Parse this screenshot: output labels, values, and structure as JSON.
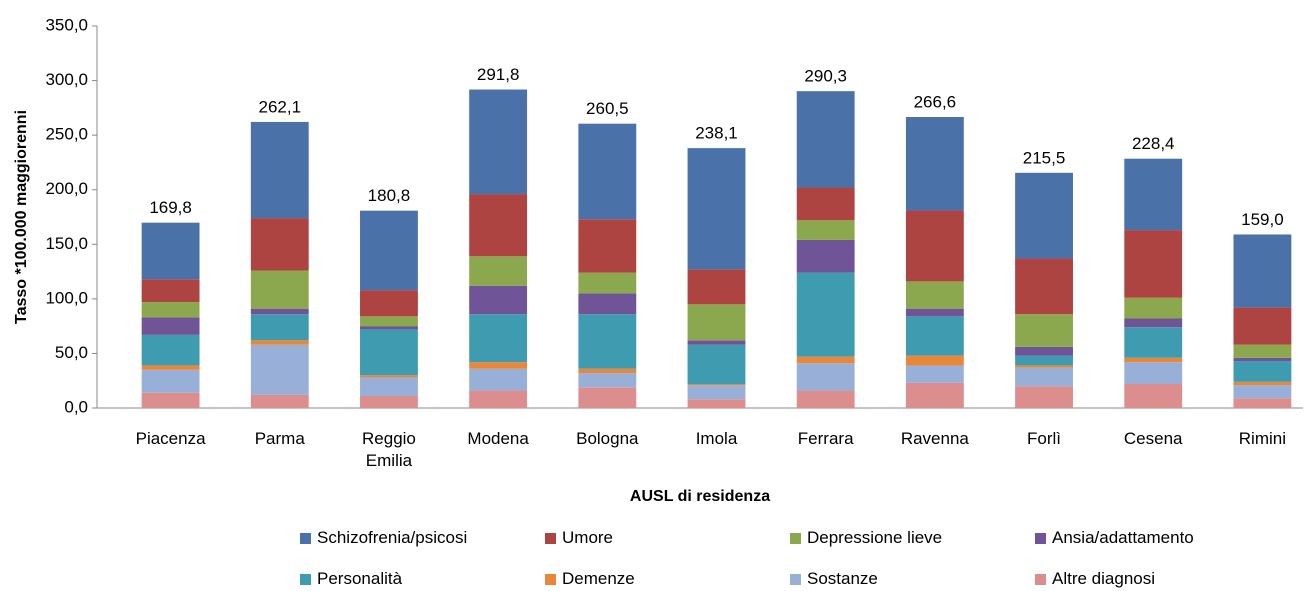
{
  "chart_data": {
    "type": "stacked_bar",
    "y_label": "Tasso *100.000 maggiorenni",
    "x_label": "AUSL di residenza",
    "categories": [
      "Piacenza",
      "Parma",
      "Reggio Emilia",
      "Modena",
      "Bologna",
      "Imola",
      "Ferrara",
      "Ravenna",
      "Forlì",
      "Cesena",
      "Rimini"
    ],
    "series": [
      {
        "name": "Schizofrenia/psicosi",
        "color": "#4a72a8",
        "values": [
          51.8,
          88.1,
          72.8,
          95.8,
          87.5,
          111.1,
          88.3,
          85.6,
          78.5,
          65.4,
          67.0
        ]
      },
      {
        "name": "Umore",
        "color": "#ae4441",
        "values": [
          21,
          48,
          24,
          57,
          49,
          32,
          30,
          65,
          51,
          62,
          34
        ]
      },
      {
        "name": "Depressione lieve",
        "color": "#8ca84e",
        "values": [
          14,
          35,
          9,
          27,
          19,
          33,
          18,
          25,
          30,
          19,
          12
        ]
      },
      {
        "name": "Ansia/adattamento",
        "color": "#6f5497",
        "values": [
          16,
          5,
          3,
          26,
          19,
          4,
          30,
          7,
          8,
          8,
          3
        ]
      },
      {
        "name": "Personalità",
        "color": "#3f9bb0",
        "values": [
          28,
          24,
          42,
          44,
          50,
          36,
          77,
          36,
          9,
          28,
          19
        ]
      },
      {
        "name": "Demenze",
        "color": "#e8873a",
        "values": [
          4,
          4,
          2,
          6,
          4,
          1,
          6,
          9,
          2,
          4,
          3
        ]
      },
      {
        "name": "Sostanze",
        "color": "#98b0d8",
        "values": [
          21,
          46,
          17,
          20,
          13,
          13,
          25,
          16,
          17,
          20,
          12
        ]
      },
      {
        "name": "Altre diagnosi",
        "color": "#dc8e8f",
        "values": [
          14,
          12,
          11,
          16,
          19,
          8,
          16,
          23,
          20,
          22,
          9
        ]
      }
    ],
    "totals": {
      "values": [
        169.8,
        262.1,
        180.8,
        291.8,
        260.5,
        238.1,
        290.3,
        266.6,
        215.5,
        228.4,
        159.0
      ],
      "value_labels": [
        "169,8",
        "262,1",
        "180,8",
        "291,8",
        "260,5",
        "238,1",
        "290,3",
        "266,6",
        "215,5",
        "228,4",
        "159,0"
      ]
    },
    "ylim": [
      0,
      350
    ],
    "yticks": [
      {
        "value": 0,
        "label": "0,0"
      },
      {
        "value": 50,
        "label": "50,0"
      },
      {
        "value": 100,
        "label": "100,0"
      },
      {
        "value": 150,
        "label": "150,0"
      },
      {
        "value": 200,
        "label": "200,0"
      },
      {
        "value": 250,
        "label": "250,0"
      },
      {
        "value": 300,
        "label": "300,0"
      },
      {
        "value": 350,
        "label": "350,0"
      }
    ]
  }
}
